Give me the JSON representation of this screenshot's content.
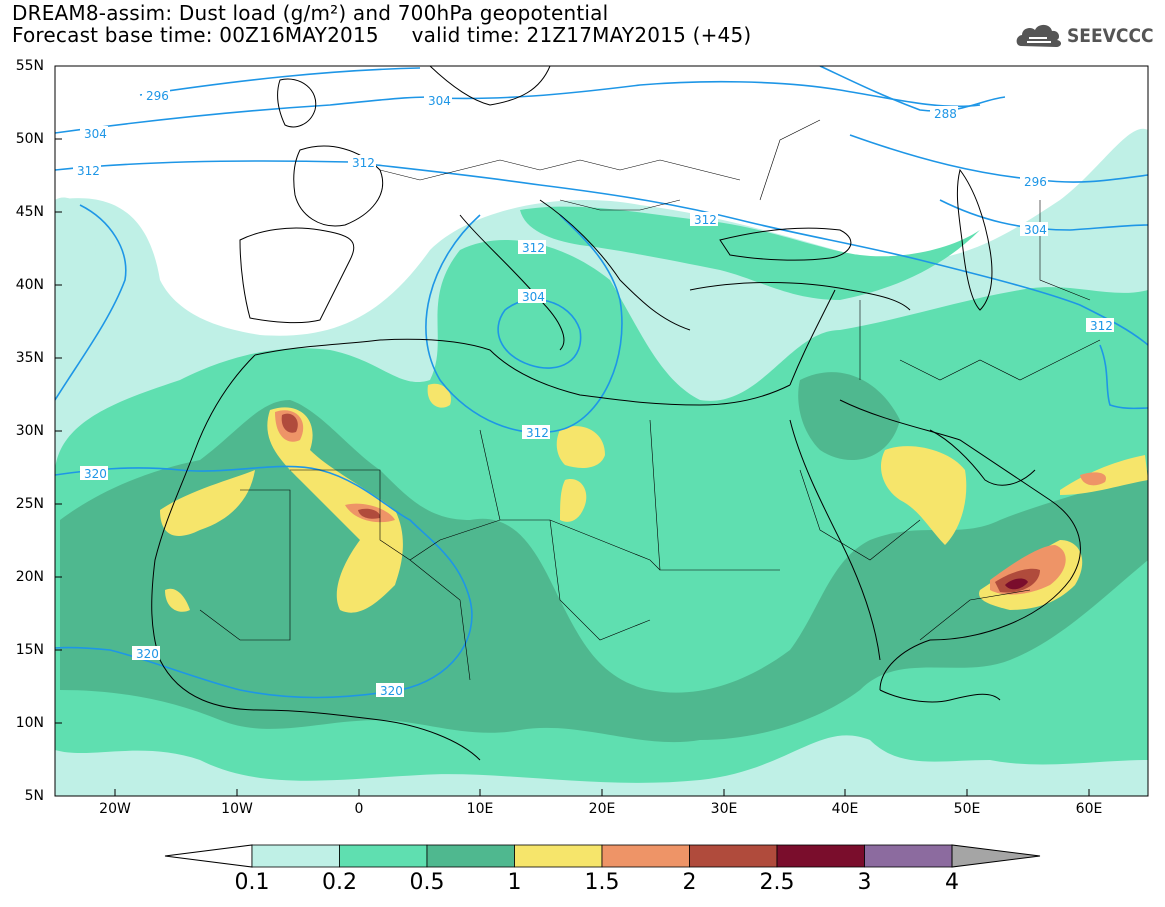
{
  "header": {
    "title_line1": "DREAM8-assim: Dust load (g/m²) and 700hPa geopotential",
    "title_line2": "Forecast base time: 00Z16MAY2015     valid time: 21Z17MAY2015 (+45)",
    "logo_text": "SEEVCCC"
  },
  "axes": {
    "lat_labels": [
      "55N",
      "50N",
      "45N",
      "40N",
      "35N",
      "30N",
      "25N",
      "20N",
      "15N",
      "10N",
      "5N"
    ],
    "lon_labels": [
      "20W",
      "10W",
      "0",
      "10E",
      "20E",
      "30E",
      "40E",
      "50E",
      "60E"
    ]
  },
  "contours": {
    "geopotential_labels": [
      "296",
      "304",
      "304",
      "312",
      "312",
      "312",
      "312",
      "304",
      "312",
      "288",
      "296",
      "304",
      "312",
      "320",
      "320",
      "320"
    ]
  },
  "colorbar": {
    "labels": [
      "0.1",
      "0.2",
      "0.5",
      "1",
      "1.5",
      "2",
      "2.5",
      "3",
      "4"
    ],
    "colors": [
      "#bff0e6",
      "#5fdfb0",
      "#4fb88f",
      "#f6e56b",
      "#ee9467",
      "#b04b3c",
      "#7a0d2c",
      "#8c6b9f"
    ],
    "under_color": "#ffffff",
    "over_color": "#a5a5a5"
  },
  "colors": {
    "contour": "#1e96e6",
    "coast": "#000000"
  }
}
